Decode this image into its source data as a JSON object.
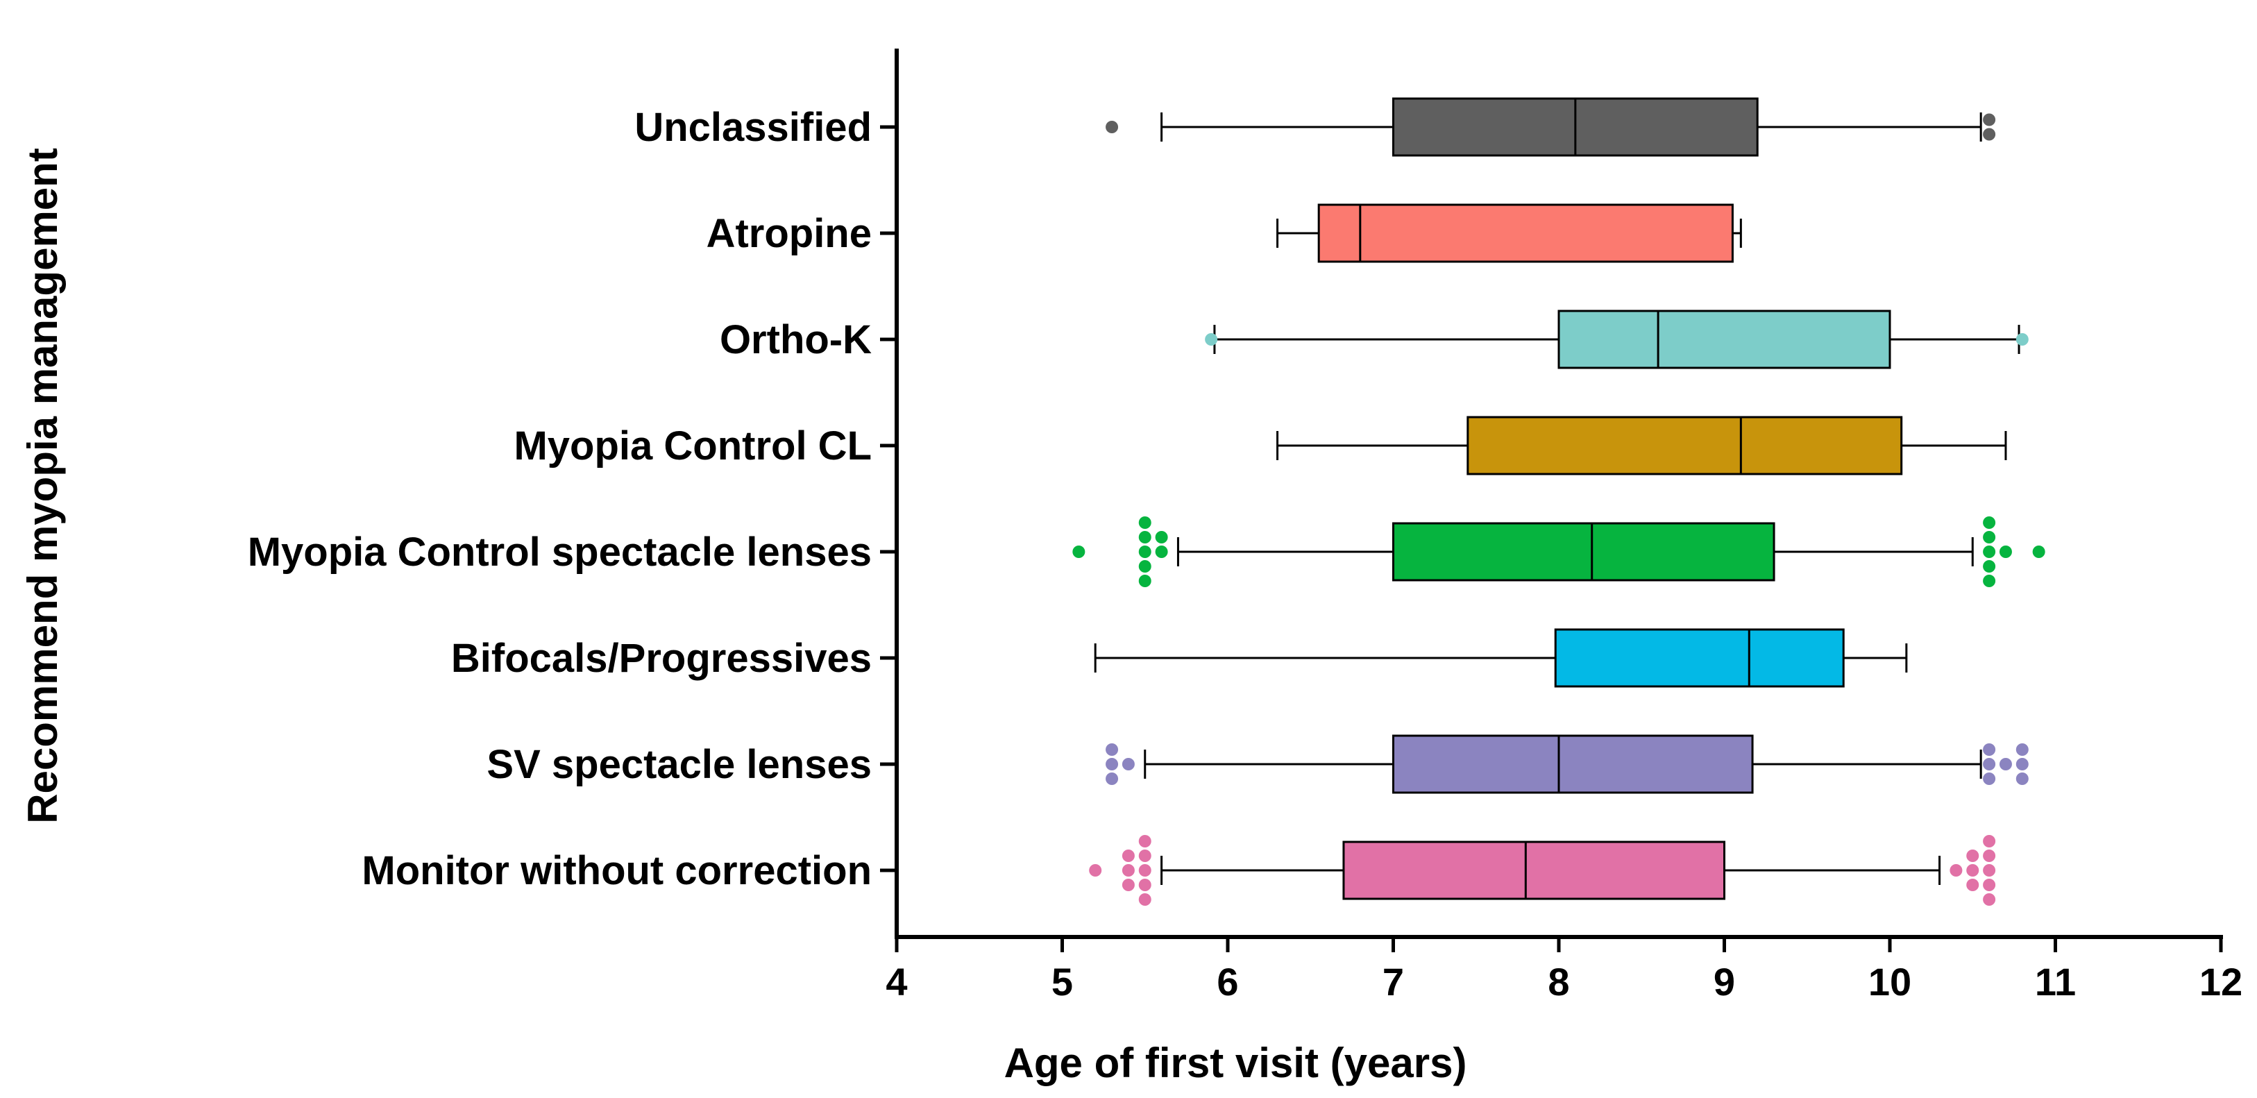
{
  "chart_data": {
    "type": "boxplot",
    "orientation": "horizontal",
    "title": "",
    "xlabel": "Age of first visit (years)",
    "ylabel": "Recommend myopia management",
    "xlim": [
      4,
      12
    ],
    "xticks": [
      "4",
      "5",
      "6",
      "7",
      "8",
      "9",
      "10",
      "11",
      "12"
    ],
    "categories": [
      {
        "name": "Unclassified",
        "color": "#5f5f5f",
        "whisker_low": 5.6,
        "q1": 7.0,
        "median": 8.1,
        "q3": 9.2,
        "whisker_high": 10.55,
        "outliers": [
          [
            5.3,
            0
          ],
          [
            10.6,
            -0.5
          ],
          [
            10.6,
            0.5
          ]
        ]
      },
      {
        "name": "Atropine",
        "color": "#fb7a70",
        "whisker_low": 6.3,
        "q1": 6.55,
        "median": 6.8,
        "q3": 9.05,
        "whisker_high": 9.1,
        "outliers": []
      },
      {
        "name": "Ortho-K",
        "color": "#7dcdc9",
        "whisker_low": 5.92,
        "q1": 8.0,
        "median": 8.6,
        "q3": 10.0,
        "whisker_high": 10.78,
        "outliers": [
          [
            5.9,
            0
          ],
          [
            10.8,
            0
          ]
        ]
      },
      {
        "name": "Myopia Control CL",
        "color": "#c8940c",
        "whisker_low": 6.3,
        "q1": 7.45,
        "median": 9.1,
        "q3": 10.07,
        "whisker_high": 10.7,
        "outliers": []
      },
      {
        "name": "Myopia Control spectacle lenses",
        "color": "#06b43f",
        "whisker_low": 5.7,
        "q1": 7.0,
        "median": 8.2,
        "q3": 9.3,
        "whisker_high": 10.5,
        "outliers": [
          [
            5.1,
            0
          ],
          [
            5.5,
            -2
          ],
          [
            5.5,
            -1
          ],
          [
            5.5,
            0
          ],
          [
            5.5,
            1
          ],
          [
            5.5,
            2
          ],
          [
            5.6,
            -1
          ],
          [
            5.6,
            0
          ],
          [
            10.6,
            -2
          ],
          [
            10.6,
            -1
          ],
          [
            10.6,
            0
          ],
          [
            10.6,
            1
          ],
          [
            10.6,
            2
          ],
          [
            10.7,
            0
          ],
          [
            10.9,
            0
          ]
        ]
      },
      {
        "name": "Bifocals/Progressives",
        "color": "#03b9e6",
        "whisker_low": 5.2,
        "q1": 7.98,
        "median": 9.15,
        "q3": 9.72,
        "whisker_high": 10.1,
        "outliers": []
      },
      {
        "name": "SV spectacle lenses",
        "color": "#8b84c0",
        "whisker_low": 5.5,
        "q1": 7.0,
        "median": 8.0,
        "q3": 9.17,
        "whisker_high": 10.55,
        "outliers": [
          [
            5.3,
            -1
          ],
          [
            5.3,
            0
          ],
          [
            5.3,
            1
          ],
          [
            5.4,
            0
          ],
          [
            10.6,
            -1
          ],
          [
            10.6,
            0
          ],
          [
            10.6,
            1
          ],
          [
            10.7,
            0
          ],
          [
            10.8,
            -1
          ],
          [
            10.8,
            0
          ],
          [
            10.8,
            1
          ]
        ]
      },
      {
        "name": "Monitor without correction",
        "color": "#e171a6",
        "whisker_low": 5.6,
        "q1": 6.7,
        "median": 7.8,
        "q3": 9.0,
        "whisker_high": 10.3,
        "outliers": [
          [
            5.2,
            0
          ],
          [
            5.4,
            -1
          ],
          [
            5.4,
            0
          ],
          [
            5.4,
            1
          ],
          [
            5.5,
            -2
          ],
          [
            5.5,
            -1
          ],
          [
            5.5,
            0
          ],
          [
            5.5,
            1
          ],
          [
            5.5,
            2
          ],
          [
            10.4,
            0
          ],
          [
            10.5,
            -1
          ],
          [
            10.5,
            0
          ],
          [
            10.5,
            1
          ],
          [
            10.6,
            -2
          ],
          [
            10.6,
            -1
          ],
          [
            10.6,
            0
          ],
          [
            10.6,
            1
          ],
          [
            10.6,
            2
          ]
        ]
      }
    ]
  }
}
